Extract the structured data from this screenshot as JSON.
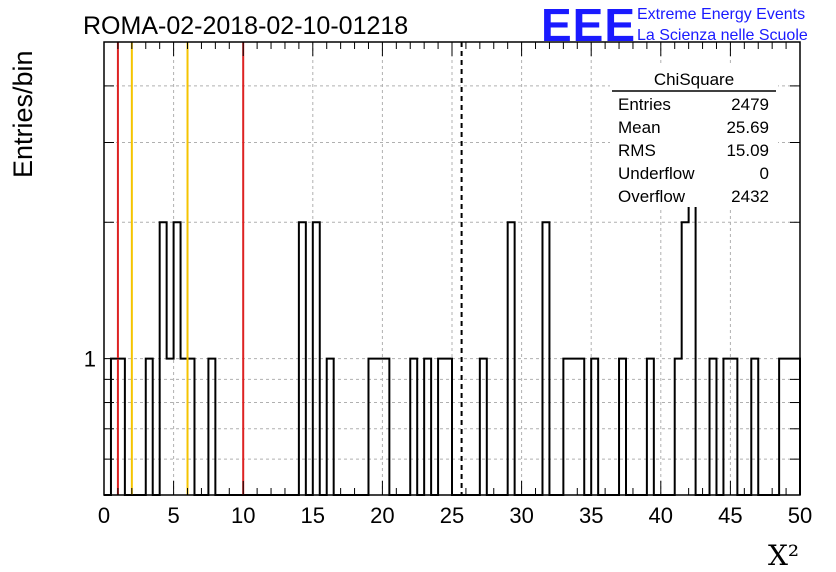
{
  "title": "ROMA-02-2018-02-10-01218",
  "logo": {
    "mark": "EEE",
    "line1": "Extreme Energy Events",
    "line2": "La Scienza nelle Scuole",
    "color": "#1a1aff"
  },
  "stats_box": {
    "title": "ChiSquare",
    "rows": [
      {
        "label": "Entries",
        "value": "2479"
      },
      {
        "label": "Mean",
        "value": "25.69"
      },
      {
        "label": "RMS",
        "value": "15.09"
      },
      {
        "label": "Underflow",
        "value": "0"
      },
      {
        "label": "Overflow",
        "value": "2432"
      }
    ]
  },
  "chart_data": {
    "type": "histogram",
    "title": "ROMA-02-2018-02-10-01218",
    "xlabel": "X²",
    "ylabel": "Entries/bin",
    "xlim": [
      0,
      50
    ],
    "ylog": true,
    "ylim": [
      0.5,
      5
    ],
    "bin_width": 0.5,
    "x_ticks": [
      "0",
      "5",
      "10",
      "15",
      "20",
      "25",
      "30",
      "35",
      "40",
      "45",
      "50"
    ],
    "y_ticks": [
      "1"
    ],
    "grid": true,
    "bins": [
      {
        "x": 0.0,
        "count": 0
      },
      {
        "x": 0.5,
        "count": 1
      },
      {
        "x": 1.0,
        "count": 1
      },
      {
        "x": 3.0,
        "count": 1
      },
      {
        "x": 4.0,
        "count": 2
      },
      {
        "x": 4.5,
        "count": 1
      },
      {
        "x": 5.0,
        "count": 2
      },
      {
        "x": 5.5,
        "count": 1
      },
      {
        "x": 6.0,
        "count": 1
      },
      {
        "x": 7.5,
        "count": 1
      },
      {
        "x": 14.0,
        "count": 2
      },
      {
        "x": 15.0,
        "count": 2
      },
      {
        "x": 16.0,
        "count": 1
      },
      {
        "x": 19.0,
        "count": 1
      },
      {
        "x": 19.5,
        "count": 1
      },
      {
        "x": 20.0,
        "count": 1
      },
      {
        "x": 22.0,
        "count": 1
      },
      {
        "x": 23.0,
        "count": 1
      },
      {
        "x": 24.0,
        "count": 1
      },
      {
        "x": 24.5,
        "count": 1
      },
      {
        "x": 27.0,
        "count": 1
      },
      {
        "x": 29.0,
        "count": 2
      },
      {
        "x": 31.5,
        "count": 2
      },
      {
        "x": 33.0,
        "count": 1
      },
      {
        "x": 33.5,
        "count": 1
      },
      {
        "x": 34.0,
        "count": 1
      },
      {
        "x": 35.0,
        "count": 1
      },
      {
        "x": 37.0,
        "count": 1
      },
      {
        "x": 39.0,
        "count": 1
      },
      {
        "x": 41.0,
        "count": 1
      },
      {
        "x": 41.5,
        "count": 2
      },
      {
        "x": 42.0,
        "count": 3
      },
      {
        "x": 43.5,
        "count": 1
      },
      {
        "x": 44.5,
        "count": 1
      },
      {
        "x": 45.0,
        "count": 1
      },
      {
        "x": 46.5,
        "count": 1
      },
      {
        "x": 48.5,
        "count": 1
      },
      {
        "x": 49.0,
        "count": 1
      },
      {
        "x": 49.5,
        "count": 1
      }
    ],
    "vertical_lines": [
      {
        "x": 1.0,
        "color": "#dd2222",
        "style": "solid"
      },
      {
        "x": 2.0,
        "color": "#f5c400",
        "style": "solid"
      },
      {
        "x": 6.0,
        "color": "#f5c400",
        "style": "solid"
      },
      {
        "x": 10.0,
        "color": "#dd2222",
        "style": "solid"
      },
      {
        "x": 25.69,
        "color": "#000000",
        "style": "dashed"
      }
    ]
  }
}
